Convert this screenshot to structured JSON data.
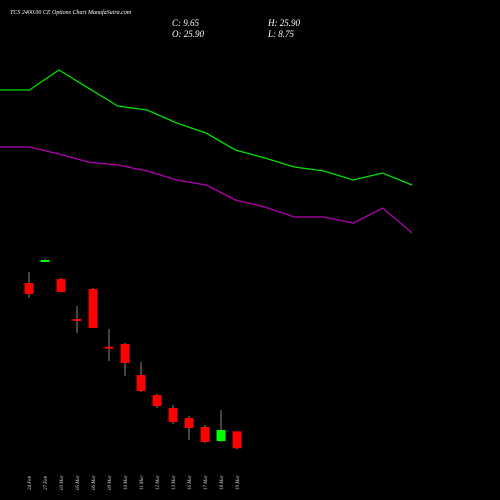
{
  "header": {
    "title": "TCS 2400.00 CE Options Chart MunafaSutra.com",
    "close": "C: 9.65",
    "high": "H: 25.90",
    "open": "O: 25.90",
    "low": "L: 8.75"
  },
  "chart_data": [
    {
      "type": "candlestick",
      "x": [
        "24 Feb",
        "27 Feb",
        "03 Mar",
        "05 Mar",
        "06 Mar",
        "09 Mar",
        "10 Mar",
        "11 Mar",
        "12 Mar",
        "13 Mar",
        "16 Mar",
        "17 Mar",
        "18 Mar",
        "19 Mar"
      ],
      "open": [
        168.3,
        189.6,
        172.2,
        133.8,
        162.6,
        107.2,
        109.8,
        80.0,
        60.8,
        48.3,
        38.7,
        30.1,
        16.6,
        25.9
      ],
      "high": [
        179.0,
        191.4,
        173.1,
        146.2,
        163.5,
        124.2,
        110.7,
        92.5,
        61.8,
        51.2,
        40.6,
        32.0,
        46.4,
        25.9
      ],
      "low": [
        154.0,
        189.0,
        159.7,
        120.3,
        125.1,
        93.4,
        79.0,
        63.7,
        48.3,
        33.0,
        17.6,
        14.7,
        15.7,
        8.75
      ],
      "close": [
        157.8,
        190.4,
        159.7,
        133.4,
        125.1,
        106.9,
        91.5,
        64.6,
        50.2,
        34.9,
        29.1,
        15.7,
        27.2,
        9.65
      ],
      "up_color": "#00ff00",
      "down_color": "#ff0000",
      "ylim": [
        -40,
        440
      ]
    },
    {
      "type": "line",
      "categories": [
        null,
        null,
        null,
        null,
        null,
        null,
        null,
        null,
        null,
        null,
        null,
        null,
        null,
        null,
        null
      ],
      "series": [
        {
          "color": "#00e000",
          "values": [
            353.6,
            353.6,
            372.8,
            355.5,
            338.2,
            334.4,
            321.9,
            312.3,
            296.0,
            288.3,
            279.7,
            275.8,
            267.2,
            273.9,
            262.4
          ]
        },
        {
          "color": "#b000b0",
          "values": [
            298.9,
            298.9,
            292.2,
            284.5,
            281.6,
            275.8,
            267.2,
            262.4,
            248.0,
            241.3,
            231.7,
            231.7,
            225.9,
            240.3,
            216.3
          ]
        }
      ],
      "ylim": [
        -40,
        440
      ]
    }
  ]
}
